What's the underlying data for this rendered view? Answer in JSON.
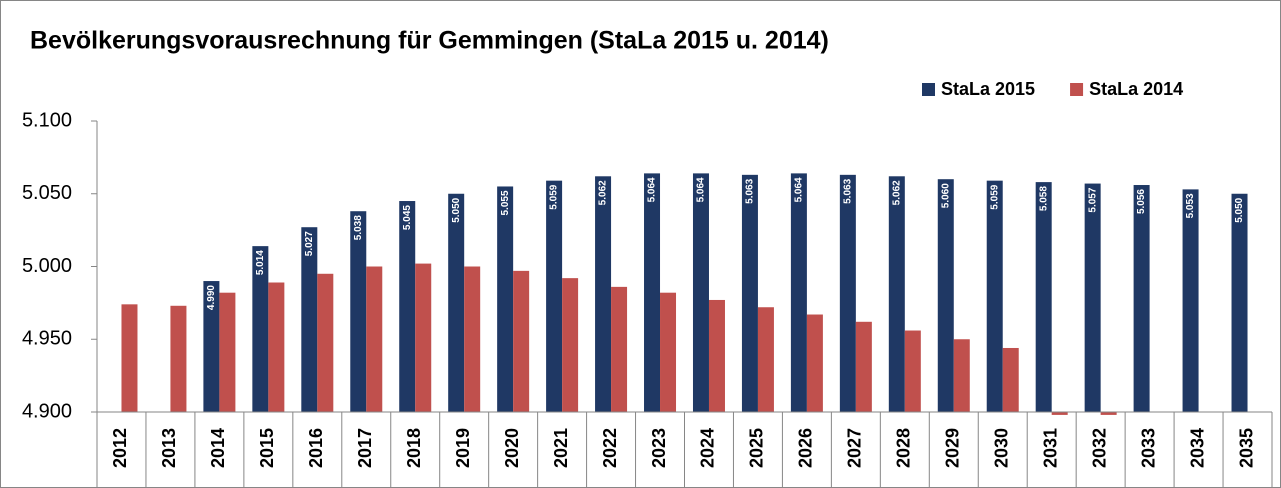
{
  "chart_data": {
    "type": "bar",
    "title": "Bevölkerungsvorausrechnung für Gemmingen (StaLa 2015 u. 2014)",
    "categories": [
      "2012",
      "2013",
      "2014",
      "2015",
      "2016",
      "2017",
      "2018",
      "2019",
      "2020",
      "2021",
      "2022",
      "2023",
      "2024",
      "2025",
      "2026",
      "2027",
      "2028",
      "2029",
      "2030",
      "2031",
      "2032",
      "2033",
      "2034",
      "2035"
    ],
    "series": [
      {
        "name": "StaLa 2015",
        "color": "#1f3864",
        "values": [
          null,
          null,
          4990,
          5014,
          5027,
          5038,
          5045,
          5050,
          5055,
          5059,
          5062,
          5064,
          5064,
          5063,
          5064,
          5063,
          5062,
          5060,
          5059,
          5058,
          5057,
          5056,
          5053,
          5050
        ],
        "value_labels": [
          null,
          null,
          "4.990",
          "5.014",
          "5.027",
          "5.038",
          "5.045",
          "5.050",
          "5.055",
          "5.059",
          "5.062",
          "5.064",
          "5.064",
          "5.063",
          "5.064",
          "5.063",
          "5.062",
          "5.060",
          "5.059",
          "5.058",
          "5.057",
          "5.056",
          "5.053",
          "5.050"
        ]
      },
      {
        "name": "StaLa 2014",
        "color": "#c0504d",
        "values": [
          4974,
          4973,
          4982,
          4989,
          4995,
          5000,
          5002,
          5000,
          4997,
          4992,
          4986,
          4982,
          4977,
          4972,
          4967,
          4962,
          4956,
          4950,
          4944,
          4898,
          4898,
          null,
          null,
          null
        ]
      }
    ],
    "ylim": [
      4900,
      5100
    ],
    "yticks": [
      {
        "value": 4900,
        "label": "4.900"
      },
      {
        "value": 4950,
        "label": "4.950"
      },
      {
        "value": 5000,
        "label": "5.000"
      },
      {
        "value": 5050,
        "label": "5.050"
      },
      {
        "value": 5100,
        "label": "5.100"
      }
    ],
    "grid": false,
    "legend": "upper right"
  }
}
